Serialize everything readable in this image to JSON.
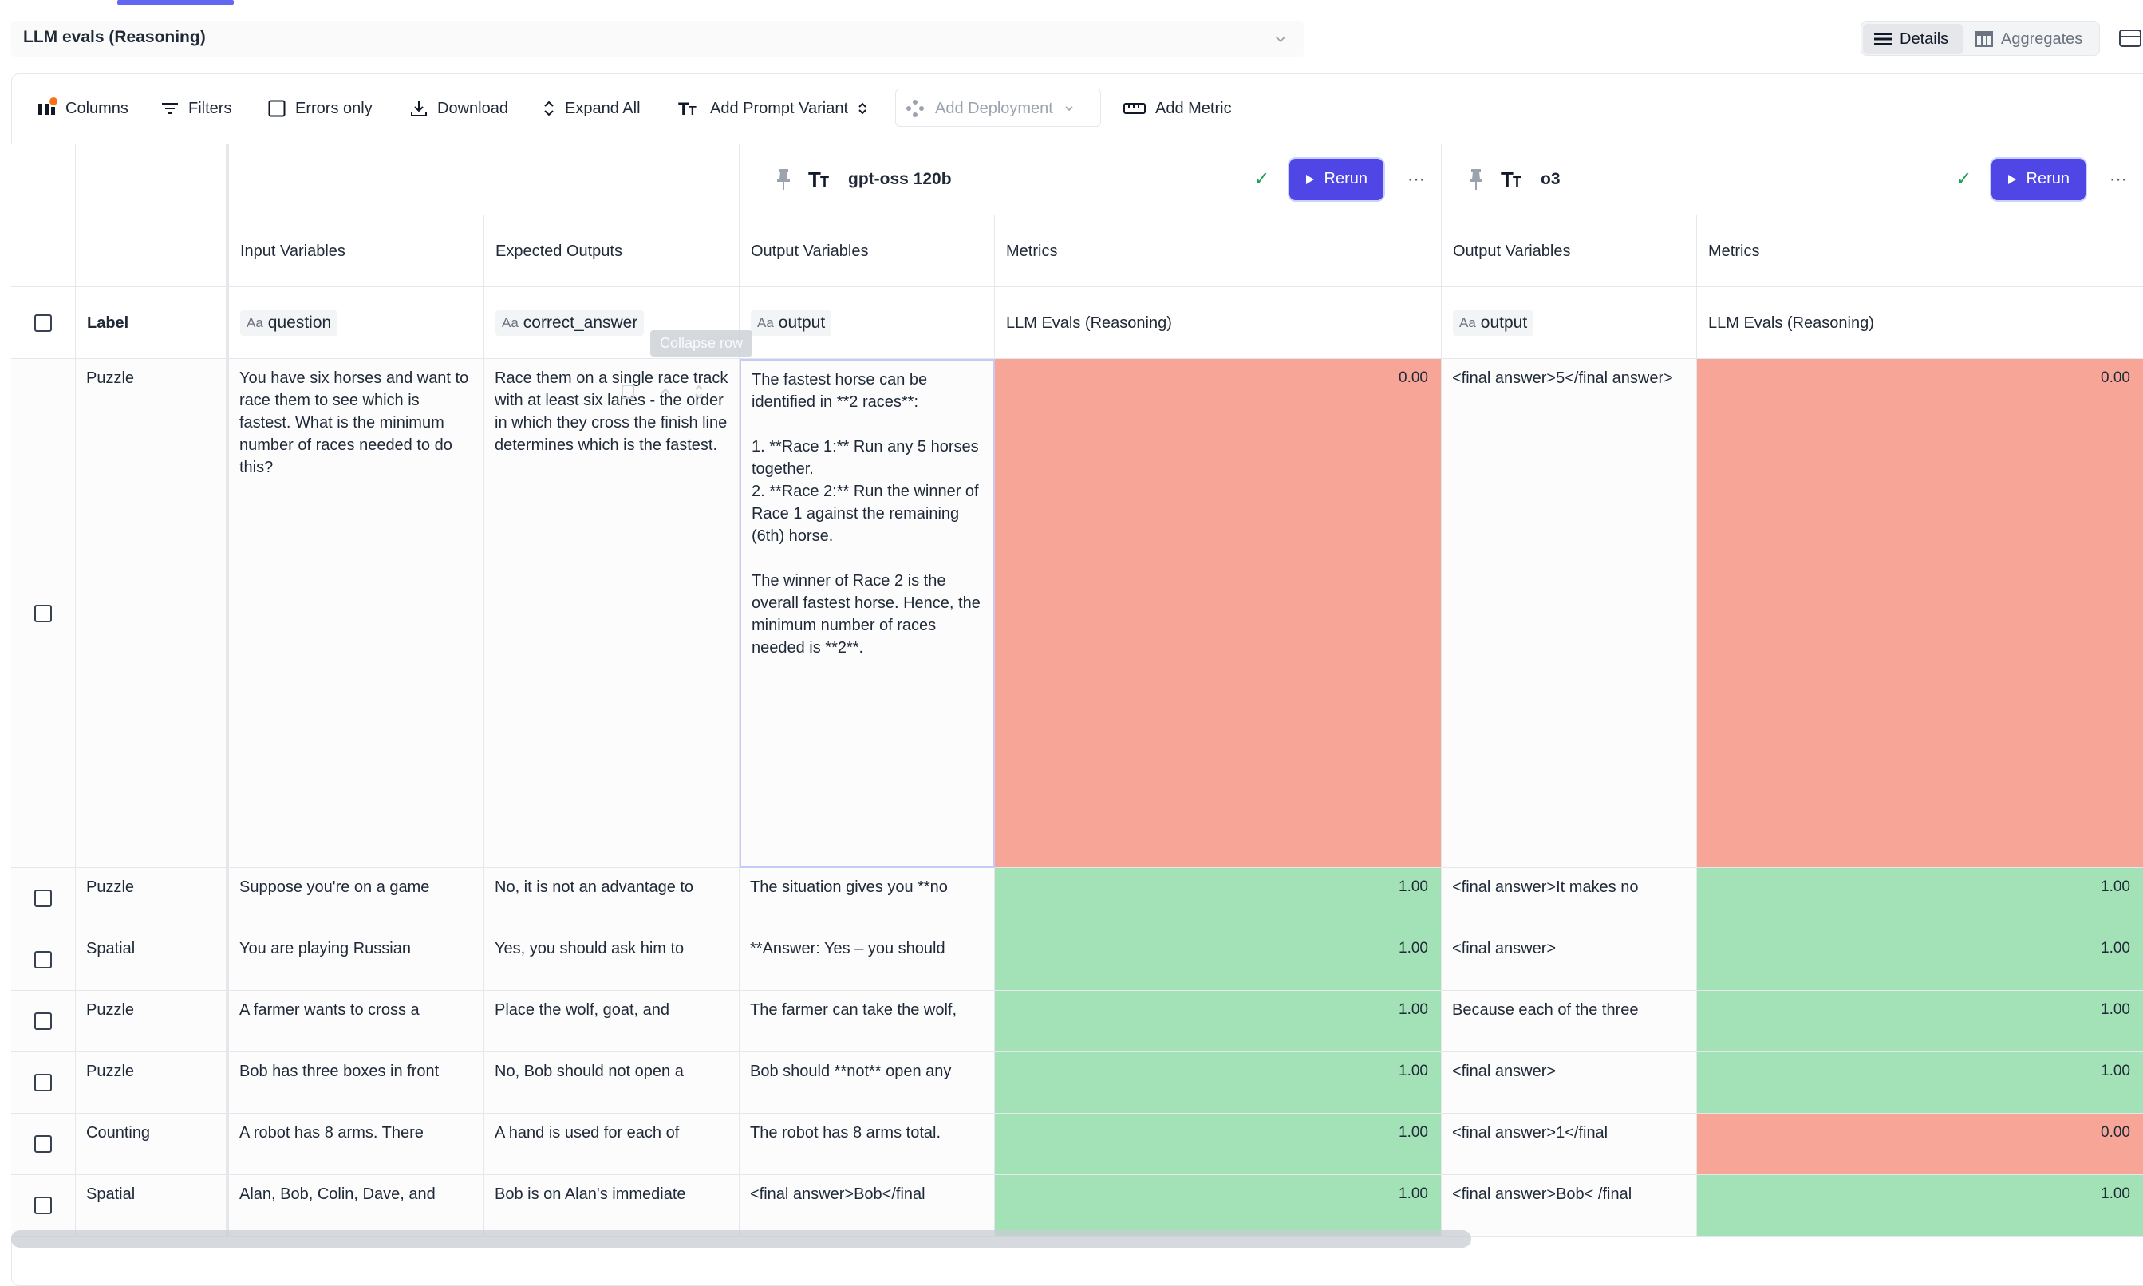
{
  "header": {
    "title": "LLM evals (Reasoning)",
    "views": [
      {
        "label": "Details",
        "icon": "list-icon",
        "active": true
      },
      {
        "label": "Aggregates",
        "icon": "table-icon",
        "active": false
      }
    ]
  },
  "toolbar": {
    "columns": "Columns",
    "filters": "Filters",
    "errors_only": "Errors only",
    "download": "Download",
    "expand_all": "Expand All",
    "add_prompt_variant": "Add Prompt Variant",
    "add_deployment": "Add Deployment",
    "add_metric": "Add Metric"
  },
  "variants": [
    {
      "name": "gpt-oss 120b",
      "rerun": "Rerun"
    },
    {
      "name": "o3",
      "rerun": "Rerun"
    }
  ],
  "columns": {
    "input_variables": "Input Variables",
    "expected_outputs": "Expected Outputs",
    "output_variables": "Output Variables",
    "metrics": "Metrics"
  },
  "subheader": {
    "label": "Label",
    "var_prefix": "Aa",
    "question": "question",
    "correct_answer": "correct_answer",
    "output": "output",
    "metric_name": "LLM Evals (Reasoning)"
  },
  "tooltip": "Collapse row",
  "rows": [
    {
      "label": "Puzzle",
      "input": "You have six horses and want to race them to see which is fastest. What is the minimum number of races needed to do this?",
      "expected": "Race them on a single race track with at least six lanes - the order in which they cross the finish line determines which is the fastest.",
      "output_a": "The fastest horse can be identified in **2 races**:\n\n1. **Race 1:** Run any 5 horses together.\n2. **Race 2:** Run the winner of Race 1 against the remaining (6th) horse.\n\nThe winner of Race 2 is the overall fastest horse. Hence, the minimum number of races needed is **2**.",
      "score_a": "0.00",
      "output_b": "<final answer>5</final answer>",
      "score_b": "0.00"
    },
    {
      "label": "Puzzle",
      "input": "Suppose you're on a game",
      "expected": "No, it is not an advantage to",
      "output_a": "The situation gives you **no",
      "score_a": "1.00",
      "output_b": "<final answer>It makes no",
      "score_b": "1.00"
    },
    {
      "label": "Spatial",
      "input": "You are playing Russian",
      "expected": "Yes, you should ask him to",
      "output_a": "**Answer: Yes – you should",
      "score_a": "1.00",
      "output_b": "<final answer>",
      "score_b": "1.00"
    },
    {
      "label": "Puzzle",
      "input": "A farmer wants to cross a",
      "expected": "Place the wolf, goat, and",
      "output_a": "The farmer can take the wolf,",
      "score_a": "1.00",
      "output_b": "Because each of the three",
      "score_b": "1.00"
    },
    {
      "label": "Puzzle",
      "input": "Bob has three boxes in front",
      "expected": "No, Bob should not open a",
      "output_a": "Bob should **not** open any",
      "score_a": "1.00",
      "output_b": "<final answer>",
      "score_b": "1.00"
    },
    {
      "label": "Counting",
      "input": "A robot has 8 arms. There",
      "expected": "A hand is used for each of",
      "output_a": "The robot has 8 arms total.",
      "score_a": "1.00",
      "output_b": "<final answer>1</final",
      "score_b": "0.00"
    },
    {
      "label": "Spatial",
      "input": "Alan, Bob, Colin, Dave, and",
      "expected": "Bob is on Alan's immediate",
      "output_a": "<final answer>Bob</final",
      "score_a": "1.00",
      "output_b": "<final answer>Bob< /final",
      "score_b": "1.00"
    }
  ],
  "colors": {
    "accent": "#4f46e5",
    "fail": "#f7a597",
    "pass": "#a3e1b6"
  }
}
